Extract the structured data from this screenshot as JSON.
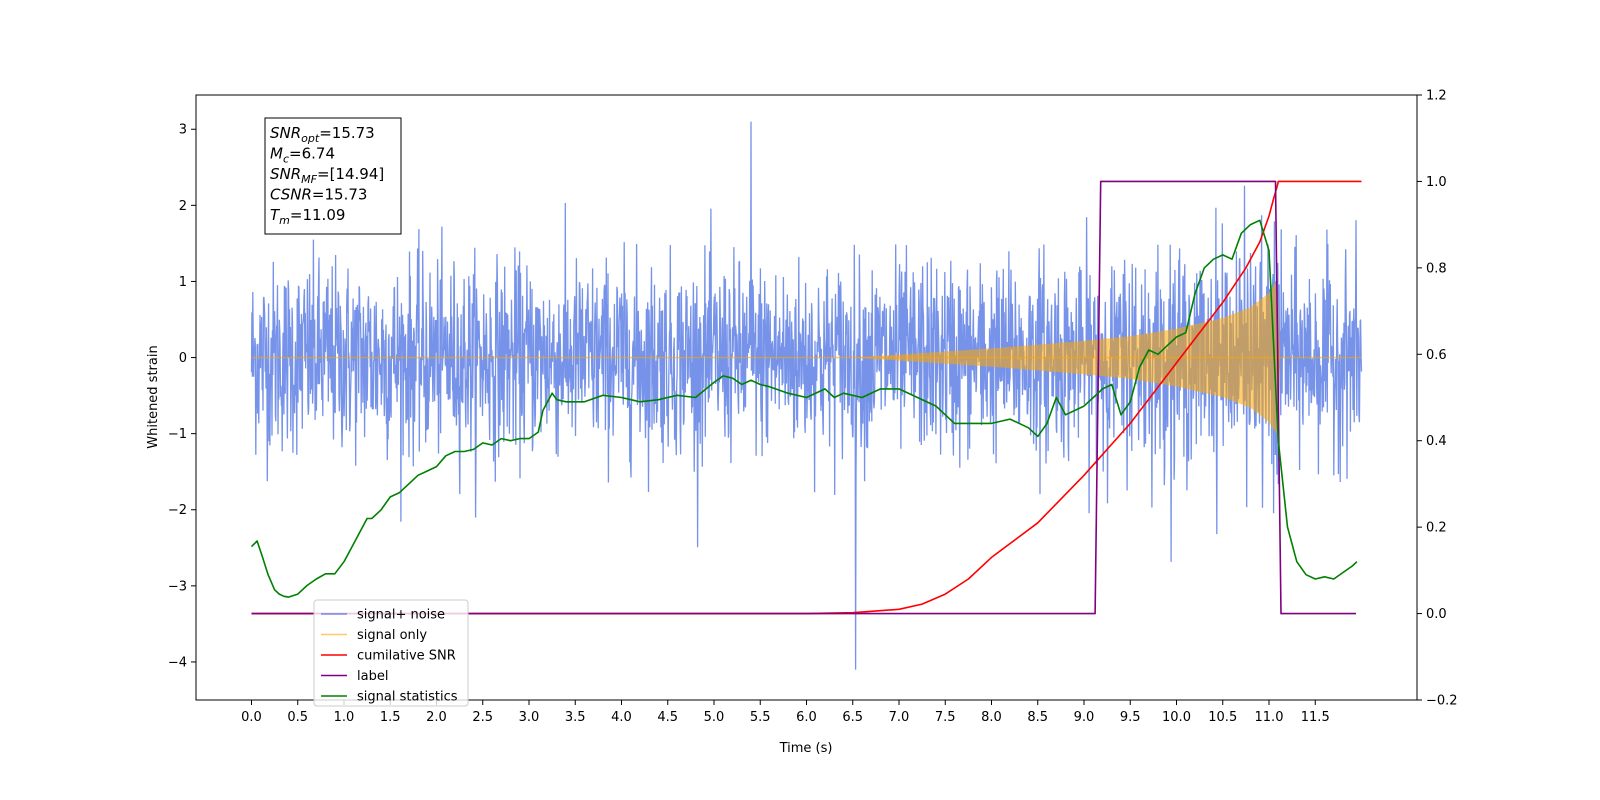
{
  "chart_data": {
    "type": "line",
    "title": "",
    "xlabel": "Time (s)",
    "ylabel": "Whitened strain",
    "y2label": "",
    "xlim": [
      -0.6,
      12.6
    ],
    "ylim": [
      -4.5,
      3.45
    ],
    "y2lim": [
      -0.2,
      1.2
    ],
    "xticks": [
      "0.0",
      "0.5",
      "1.0",
      "1.5",
      "2.0",
      "2.5",
      "3.0",
      "3.5",
      "4.0",
      "4.5",
      "5.0",
      "5.5",
      "6.0",
      "6.5",
      "7.0",
      "7.5",
      "8.0",
      "8.5",
      "9.0",
      "9.5",
      "10.0",
      "10.5",
      "11.0",
      "11.5"
    ],
    "yticks": [
      -4,
      -3,
      -2,
      -1,
      0,
      1,
      2,
      3
    ],
    "y2ticks": [
      "−0.2",
      "0.0",
      "0.2",
      "0.4",
      "0.6",
      "0.8",
      "1.0",
      "1.2"
    ],
    "grid": false,
    "legend_position": "bottom-left",
    "annotation": {
      "lines": [
        {
          "base": "SNR",
          "sub": "opt",
          "value": "=15.73"
        },
        {
          "base": "M",
          "sub": "c",
          "value": "=6.74"
        },
        {
          "base": "SNR",
          "sub": "MF",
          "value": "=[14.94]"
        },
        {
          "base": "CSNR",
          "sub": "",
          "value": "=15.73"
        },
        {
          "base": "T",
          "sub": "m",
          "value": "=11.09"
        }
      ]
    },
    "legend": [
      {
        "label": "signal+ noise",
        "color": "#4169e1"
      },
      {
        "label": "signal only",
        "color": "#ffa500"
      },
      {
        "label": "cumilative SNR",
        "color": "#ff0000"
      },
      {
        "label": "label",
        "color": "#800080"
      },
      {
        "label": "signal statistics",
        "color": "#008000"
      }
    ],
    "series": [
      {
        "name": "signal+ noise",
        "axis": "left",
        "color": "#4169e1",
        "style": "dense-noise",
        "x_range": [
          0.0,
          12.0
        ],
        "typical_envelope": 1.4,
        "peak_min": -4.1,
        "peak_max": 3.1
      },
      {
        "name": "signal only",
        "axis": "left",
        "color": "#ffa500",
        "style": "chirp-envelope",
        "x": [
          0.0,
          6.5,
          7.0,
          8.0,
          9.0,
          9.5,
          10.0,
          10.5,
          10.8,
          11.0,
          11.09,
          11.12,
          12.0
        ],
        "amplitude": [
          0.0,
          0.0,
          0.04,
          0.12,
          0.22,
          0.28,
          0.38,
          0.52,
          0.66,
          0.85,
          1.02,
          0.0,
          0.0
        ]
      },
      {
        "name": "cumilative SNR",
        "axis": "right",
        "color": "#ff0000",
        "x": [
          0.0,
          6.0,
          6.5,
          7.0,
          7.25,
          7.5,
          7.75,
          8.0,
          8.5,
          9.0,
          9.5,
          10.0,
          10.5,
          10.75,
          10.9,
          11.0,
          11.05,
          11.09,
          11.1,
          12.0
        ],
        "values": [
          0.0,
          0.0,
          0.002,
          0.01,
          0.022,
          0.045,
          0.08,
          0.13,
          0.21,
          0.32,
          0.44,
          0.58,
          0.72,
          0.8,
          0.86,
          0.92,
          0.96,
          0.99,
          1.0,
          1.0
        ]
      },
      {
        "name": "label",
        "axis": "right",
        "color": "#800080",
        "x": [
          0.0,
          9.12,
          9.18,
          11.07,
          11.13,
          11.94
        ],
        "values": [
          0.0,
          0.0,
          1.0,
          1.0,
          0.0,
          0.0
        ]
      },
      {
        "name": "signal statistics",
        "axis": "right",
        "color": "#008000",
        "x": [
          0.0,
          0.06,
          0.12,
          0.18,
          0.25,
          0.3,
          0.35,
          0.4,
          0.5,
          0.6,
          0.7,
          0.8,
          0.9,
          1.0,
          1.1,
          1.2,
          1.25,
          1.3,
          1.4,
          1.5,
          1.6,
          1.7,
          1.8,
          1.9,
          2.0,
          2.1,
          2.2,
          2.3,
          2.4,
          2.5,
          2.6,
          2.7,
          2.8,
          2.9,
          3.0,
          3.1,
          3.15,
          3.25,
          3.3,
          3.4,
          3.6,
          3.8,
          4.0,
          4.2,
          4.4,
          4.6,
          4.8,
          5.0,
          5.1,
          5.2,
          5.3,
          5.4,
          5.5,
          5.6,
          5.8,
          6.0,
          6.2,
          6.3,
          6.4,
          6.6,
          6.8,
          6.9,
          7.0,
          7.2,
          7.4,
          7.6,
          7.8,
          8.0,
          8.2,
          8.4,
          8.5,
          8.6,
          8.7,
          8.8,
          9.0,
          9.1,
          9.2,
          9.3,
          9.4,
          9.5,
          9.6,
          9.7,
          9.8,
          9.9,
          10.0,
          10.1,
          10.2,
          10.3,
          10.4,
          10.5,
          10.6,
          10.7,
          10.8,
          10.9,
          11.0,
          11.1,
          11.2,
          11.3,
          11.4,
          11.5,
          11.6,
          11.7,
          11.8,
          11.9,
          11.95
        ],
        "values": [
          0.155,
          0.168,
          0.13,
          0.09,
          0.055,
          0.045,
          0.04,
          0.038,
          0.045,
          0.065,
          0.08,
          0.092,
          0.092,
          0.12,
          0.16,
          0.2,
          0.22,
          0.22,
          0.24,
          0.27,
          0.28,
          0.3,
          0.32,
          0.33,
          0.34,
          0.365,
          0.375,
          0.375,
          0.38,
          0.395,
          0.39,
          0.405,
          0.4,
          0.405,
          0.405,
          0.42,
          0.47,
          0.51,
          0.495,
          0.49,
          0.49,
          0.505,
          0.5,
          0.49,
          0.495,
          0.505,
          0.5,
          0.535,
          0.55,
          0.545,
          0.53,
          0.54,
          0.53,
          0.525,
          0.51,
          0.5,
          0.52,
          0.5,
          0.51,
          0.5,
          0.52,
          0.52,
          0.52,
          0.5,
          0.48,
          0.44,
          0.44,
          0.44,
          0.45,
          0.43,
          0.41,
          0.44,
          0.5,
          0.46,
          0.48,
          0.5,
          0.52,
          0.53,
          0.46,
          0.49,
          0.57,
          0.61,
          0.6,
          0.62,
          0.64,
          0.65,
          0.74,
          0.8,
          0.82,
          0.83,
          0.82,
          0.88,
          0.9,
          0.91,
          0.84,
          0.4,
          0.2,
          0.12,
          0.09,
          0.08,
          0.085,
          0.08,
          0.095,
          0.11,
          0.12
        ]
      }
    ]
  }
}
